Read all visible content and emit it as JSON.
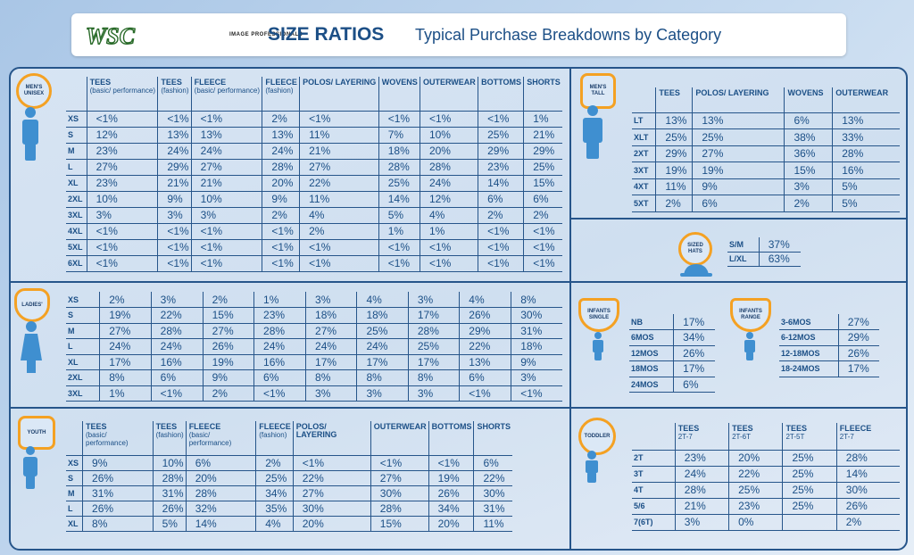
{
  "header": {
    "logo_text": "WSC",
    "tagline": "IMAGE PROFESSIONALS",
    "title": "SIZE RATIOS",
    "subtitle": "Typical Purchase Breakdowns by Category"
  },
  "colors": {
    "accent": "#f4a123",
    "navy": "#1b4f86",
    "line": "#26558a"
  },
  "mens": {
    "badge": "MEN'S UNISEX",
    "columns": [
      {
        "name": "TEES",
        "sub": "(basic/ performance)"
      },
      {
        "name": "TEES",
        "sub": "(fashion)"
      },
      {
        "name": "FLEECE",
        "sub": "(basic/ performance)"
      },
      {
        "name": "FLEECE",
        "sub": "(fashion)"
      },
      {
        "name": "POLOS/ LAYERING",
        "sub": ""
      },
      {
        "name": "WOVENS",
        "sub": ""
      },
      {
        "name": "OUTERWEAR",
        "sub": ""
      },
      {
        "name": "BOTTOMS",
        "sub": ""
      },
      {
        "name": "SHORTS",
        "sub": ""
      }
    ],
    "rows": [
      {
        "size": "XS",
        "values": [
          "<1%",
          "<1%",
          "<1%",
          "2%",
          "<1%",
          "<1%",
          "<1%",
          "<1%",
          "1%"
        ]
      },
      {
        "size": "S",
        "values": [
          "12%",
          "13%",
          "13%",
          "13%",
          "11%",
          "7%",
          "10%",
          "25%",
          "21%"
        ]
      },
      {
        "size": "M",
        "values": [
          "23%",
          "24%",
          "24%",
          "24%",
          "21%",
          "18%",
          "20%",
          "29%",
          "29%"
        ]
      },
      {
        "size": "L",
        "values": [
          "27%",
          "29%",
          "27%",
          "28%",
          "27%",
          "28%",
          "28%",
          "23%",
          "25%"
        ]
      },
      {
        "size": "XL",
        "values": [
          "23%",
          "21%",
          "21%",
          "20%",
          "22%",
          "25%",
          "24%",
          "14%",
          "15%"
        ]
      },
      {
        "size": "2XL",
        "values": [
          "10%",
          "9%",
          "10%",
          "9%",
          "11%",
          "14%",
          "12%",
          "6%",
          "6%"
        ]
      },
      {
        "size": "3XL",
        "values": [
          "3%",
          "3%",
          "3%",
          "2%",
          "4%",
          "5%",
          "4%",
          "2%",
          "2%"
        ]
      },
      {
        "size": "4XL",
        "values": [
          "<1%",
          "<1%",
          "<1%",
          "<1%",
          "2%",
          "1%",
          "1%",
          "<1%",
          "<1%"
        ]
      },
      {
        "size": "5XL",
        "values": [
          "<1%",
          "<1%",
          "<1%",
          "<1%",
          "<1%",
          "<1%",
          "<1%",
          "<1%",
          "<1%"
        ]
      },
      {
        "size": "6XL",
        "values": [
          "<1%",
          "<1%",
          "<1%",
          "<1%",
          "<1%",
          "<1%",
          "<1%",
          "<1%",
          "<1%"
        ]
      }
    ]
  },
  "ladies": {
    "badge": "LADIES'",
    "rows": [
      {
        "size": "XS",
        "values": [
          "2%",
          "3%",
          "2%",
          "1%",
          "3%",
          "4%",
          "3%",
          "4%",
          "8%"
        ]
      },
      {
        "size": "S",
        "values": [
          "19%",
          "22%",
          "15%",
          "23%",
          "18%",
          "18%",
          "17%",
          "26%",
          "30%"
        ]
      },
      {
        "size": "M",
        "values": [
          "27%",
          "28%",
          "27%",
          "28%",
          "27%",
          "25%",
          "28%",
          "29%",
          "31%"
        ]
      },
      {
        "size": "L",
        "values": [
          "24%",
          "24%",
          "26%",
          "24%",
          "24%",
          "24%",
          "25%",
          "22%",
          "18%"
        ]
      },
      {
        "size": "XL",
        "values": [
          "17%",
          "16%",
          "19%",
          "16%",
          "17%",
          "17%",
          "17%",
          "13%",
          "9%"
        ]
      },
      {
        "size": "2XL",
        "values": [
          "8%",
          "6%",
          "9%",
          "6%",
          "8%",
          "8%",
          "8%",
          "6%",
          "3%"
        ]
      },
      {
        "size": "3XL",
        "values": [
          "1%",
          "<1%",
          "2%",
          "<1%",
          "3%",
          "3%",
          "3%",
          "<1%",
          "<1%"
        ]
      }
    ]
  },
  "youth": {
    "badge": "YOUTH",
    "columns": [
      {
        "name": "TEES",
        "sub": "(basic/ performance)"
      },
      {
        "name": "TEES",
        "sub": "(fashion)"
      },
      {
        "name": "FLEECE",
        "sub": "(basic/ performance)"
      },
      {
        "name": "FLEECE",
        "sub": "(fashion)"
      },
      {
        "name": "POLOS/ LAYERING",
        "sub": ""
      },
      {
        "name": "OUTERWEAR",
        "sub": ""
      },
      {
        "name": "BOTTOMS",
        "sub": ""
      },
      {
        "name": "SHORTS",
        "sub": ""
      }
    ],
    "rows": [
      {
        "size": "XS",
        "values": [
          "9%",
          "10%",
          "6%",
          "2%",
          "<1%",
          "<1%",
          "<1%",
          "6%"
        ]
      },
      {
        "size": "S",
        "values": [
          "26%",
          "28%",
          "20%",
          "25%",
          "22%",
          "27%",
          "19%",
          "22%"
        ]
      },
      {
        "size": "M",
        "values": [
          "31%",
          "31%",
          "28%",
          "34%",
          "27%",
          "30%",
          "26%",
          "30%"
        ]
      },
      {
        "size": "L",
        "values": [
          "26%",
          "26%",
          "32%",
          "35%",
          "30%",
          "28%",
          "34%",
          "31%"
        ]
      },
      {
        "size": "XL",
        "values": [
          "8%",
          "5%",
          "14%",
          "4%",
          "20%",
          "15%",
          "20%",
          "11%"
        ]
      }
    ]
  },
  "mens_tall": {
    "badge": "MEN'S TALL",
    "columns": [
      {
        "name": "TEES",
        "sub": ""
      },
      {
        "name": "POLOS/ LAYERING",
        "sub": ""
      },
      {
        "name": "WOVENS",
        "sub": ""
      },
      {
        "name": "OUTERWEAR",
        "sub": ""
      }
    ],
    "rows": [
      {
        "size": "LT",
        "values": [
          "13%",
          "13%",
          "6%",
          "13%"
        ]
      },
      {
        "size": "XLT",
        "values": [
          "25%",
          "25%",
          "38%",
          "33%"
        ]
      },
      {
        "size": "2XT",
        "values": [
          "29%",
          "27%",
          "36%",
          "28%"
        ]
      },
      {
        "size": "3XT",
        "values": [
          "19%",
          "19%",
          "15%",
          "16%"
        ]
      },
      {
        "size": "4XT",
        "values": [
          "11%",
          "9%",
          "3%",
          "5%"
        ]
      },
      {
        "size": "5XT",
        "values": [
          "2%",
          "6%",
          "2%",
          "5%"
        ]
      }
    ]
  },
  "hats": {
    "badge": "SIZED HATS",
    "rows": [
      {
        "size": "S/M",
        "values": [
          "37%"
        ]
      },
      {
        "size": "L/XL",
        "values": [
          "63%"
        ]
      }
    ]
  },
  "infants_single": {
    "badge": "INFANTS SINGLE",
    "rows": [
      {
        "size": "NB",
        "values": [
          "17%"
        ]
      },
      {
        "size": "6MOS",
        "values": [
          "34%"
        ]
      },
      {
        "size": "12MOS",
        "values": [
          "26%"
        ]
      },
      {
        "size": "18MOS",
        "values": [
          "17%"
        ]
      },
      {
        "size": "24MOS",
        "values": [
          "6%"
        ]
      }
    ]
  },
  "infants_range": {
    "badge": "INFANTS RANGE",
    "rows": [
      {
        "size": "3-6MOS",
        "values": [
          "27%"
        ]
      },
      {
        "size": "6-12MOS",
        "values": [
          "29%"
        ]
      },
      {
        "size": "12-18MOS",
        "values": [
          "26%"
        ]
      },
      {
        "size": "18-24MOS",
        "values": [
          "17%"
        ]
      }
    ]
  },
  "toddler": {
    "badge": "TODDLER",
    "columns": [
      {
        "name": "TEES",
        "sub": "2T-7"
      },
      {
        "name": "TEES",
        "sub": "2T-6T"
      },
      {
        "name": "TEES",
        "sub": "2T-5T"
      },
      {
        "name": "FLEECE",
        "sub": "2T-7"
      }
    ],
    "rows": [
      {
        "size": "2T",
        "values": [
          "23%",
          "20%",
          "25%",
          "28%"
        ]
      },
      {
        "size": "3T",
        "values": [
          "24%",
          "22%",
          "25%",
          "14%"
        ]
      },
      {
        "size": "4T",
        "values": [
          "28%",
          "25%",
          "25%",
          "30%"
        ]
      },
      {
        "size": "5/6",
        "values": [
          "21%",
          "23%",
          "25%",
          "26%"
        ]
      },
      {
        "size": "7(6T)",
        "values": [
          "3%",
          "0%",
          "",
          "2%"
        ]
      }
    ]
  }
}
